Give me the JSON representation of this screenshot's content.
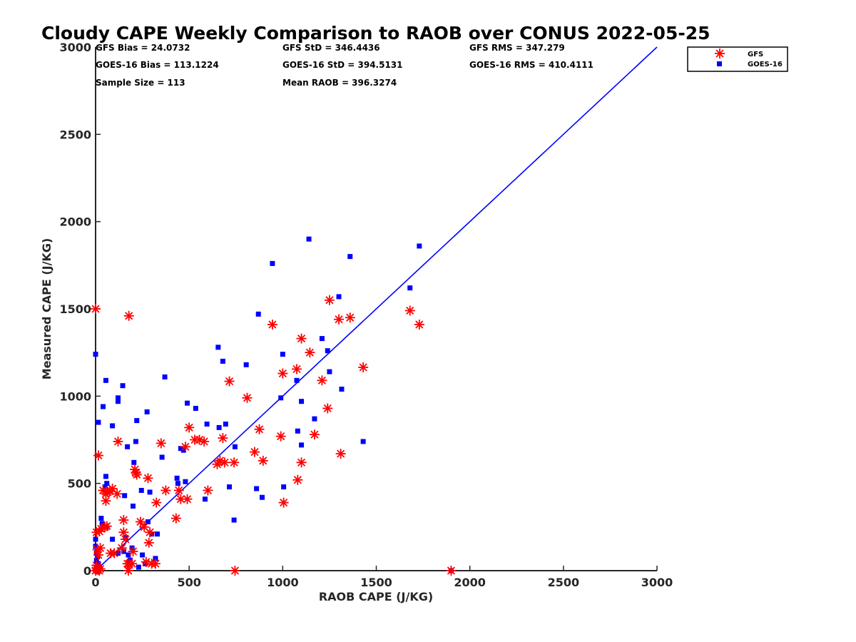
{
  "chart_data": {
    "type": "scatter",
    "title": "Cloudy CAPE Weekly Comparison to RAOB over CONUS 2022-05-25",
    "xlabel": "RAOB CAPE (J/KG)",
    "ylabel": "Measured CAPE (J/KG)",
    "xlim": [
      0,
      3000
    ],
    "ylim": [
      0,
      3000
    ],
    "xticks": [
      "0",
      "500",
      "1000",
      "1500",
      "2000",
      "2500",
      "3000"
    ],
    "yticks": [
      "0",
      "500",
      "1000",
      "1500",
      "2000",
      "2500",
      "3000"
    ],
    "legend_position": "top-right",
    "stats": {
      "gfs_bias": "GFS Bias = 24.0732",
      "goes_bias": "GOES-16 Bias = 113.1224",
      "sample_size": "Sample Size = 113",
      "gfs_std": "GFS StD = 346.4436",
      "goes_std": "GOES-16 StD = 394.5131",
      "mean_raob": "Mean RAOB = 396.3274",
      "gfs_rms": "GFS RMS = 347.279",
      "goes_rms": "GOES-16 RMS = 410.4111"
    },
    "fit_line": {
      "x": [
        0,
        3000
      ],
      "y": [
        0,
        3000
      ],
      "color": "#0000ff"
    },
    "series": [
      {
        "name": "GFS",
        "marker": "asterisk",
        "color": "#ff0000",
        "points": [
          [
            0,
            1500
          ],
          [
            178,
            1460
          ],
          [
            15,
            660
          ],
          [
            0,
            0
          ],
          [
            5,
            15
          ],
          [
            10,
            5
          ],
          [
            20,
            0
          ],
          [
            25,
            10
          ],
          [
            5,
            30
          ],
          [
            15,
            90
          ],
          [
            10,
            120
          ],
          [
            25,
            130
          ],
          [
            5,
            220
          ],
          [
            20,
            225
          ],
          [
            30,
            240
          ],
          [
            50,
            250
          ],
          [
            60,
            255
          ],
          [
            55,
            400
          ],
          [
            40,
            460
          ],
          [
            55,
            440
          ],
          [
            65,
            450
          ],
          [
            75,
            455
          ],
          [
            90,
            470
          ],
          [
            115,
            440
          ],
          [
            120,
            740
          ],
          [
            80,
            100
          ],
          [
            100,
            100
          ],
          [
            140,
            130
          ],
          [
            150,
            290
          ],
          [
            150,
            220
          ],
          [
            160,
            180
          ],
          [
            170,
            40
          ],
          [
            180,
            40
          ],
          [
            175,
            0
          ],
          [
            195,
            40
          ],
          [
            200,
            110
          ],
          [
            215,
            560
          ],
          [
            210,
            580
          ],
          [
            220,
            550
          ],
          [
            240,
            280
          ],
          [
            260,
            250
          ],
          [
            270,
            50
          ],
          [
            290,
            220
          ],
          [
            285,
            160
          ],
          [
            280,
            530
          ],
          [
            300,
            40
          ],
          [
            320,
            40
          ],
          [
            325,
            390
          ],
          [
            350,
            730
          ],
          [
            375,
            460
          ],
          [
            430,
            300
          ],
          [
            445,
            460
          ],
          [
            455,
            410
          ],
          [
            480,
            710
          ],
          [
            490,
            410
          ],
          [
            500,
            820
          ],
          [
            530,
            750
          ],
          [
            555,
            750
          ],
          [
            580,
            740
          ],
          [
            600,
            460
          ],
          [
            650,
            610
          ],
          [
            665,
            630
          ],
          [
            690,
            620
          ],
          [
            680,
            760
          ],
          [
            715,
            1085
          ],
          [
            740,
            620
          ],
          [
            745,
            0
          ],
          [
            810,
            990
          ],
          [
            850,
            680
          ],
          [
            875,
            810
          ],
          [
            895,
            630
          ],
          [
            945,
            1410
          ],
          [
            990,
            770
          ],
          [
            1000,
            1130
          ],
          [
            1005,
            390
          ],
          [
            1075,
            1155
          ],
          [
            1080,
            520
          ],
          [
            1100,
            620
          ],
          [
            1100,
            1330
          ],
          [
            1145,
            1250
          ],
          [
            1170,
            780
          ],
          [
            1210,
            1090
          ],
          [
            1240,
            930
          ],
          [
            1250,
            1550
          ],
          [
            1300,
            1440
          ],
          [
            1310,
            670
          ],
          [
            1360,
            1450
          ],
          [
            1430,
            1165
          ],
          [
            1680,
            1490
          ],
          [
            1730,
            1410
          ],
          [
            1900,
            0
          ]
        ]
      },
      {
        "name": "GOES-16",
        "marker": "square",
        "color": "#0000ff",
        "points": [
          [
            0,
            1240
          ],
          [
            15,
            850
          ],
          [
            40,
            940
          ],
          [
            55,
            1090
          ],
          [
            120,
            970
          ],
          [
            120,
            990
          ],
          [
            145,
            1060
          ],
          [
            90,
            830
          ],
          [
            170,
            710
          ],
          [
            205,
            620
          ],
          [
            215,
            740
          ],
          [
            220,
            860
          ],
          [
            275,
            910
          ],
          [
            370,
            1110
          ],
          [
            55,
            540
          ],
          [
            60,
            500
          ],
          [
            50,
            480
          ],
          [
            30,
            300
          ],
          [
            35,
            270
          ],
          [
            55,
            250
          ],
          [
            0,
            180
          ],
          [
            0,
            140
          ],
          [
            5,
            100
          ],
          [
            10,
            80
          ],
          [
            5,
            60
          ],
          [
            15,
            40
          ],
          [
            20,
            20
          ],
          [
            0,
            0
          ],
          [
            10,
            0
          ],
          [
            25,
            10
          ],
          [
            90,
            180
          ],
          [
            120,
            100
          ],
          [
            150,
            110
          ],
          [
            155,
            430
          ],
          [
            160,
            190
          ],
          [
            175,
            90
          ],
          [
            185,
            60
          ],
          [
            195,
            130
          ],
          [
            200,
            370
          ],
          [
            230,
            20
          ],
          [
            245,
            460
          ],
          [
            250,
            90
          ],
          [
            265,
            40
          ],
          [
            280,
            280
          ],
          [
            290,
            450
          ],
          [
            300,
            210
          ],
          [
            320,
            70
          ],
          [
            330,
            210
          ],
          [
            355,
            650
          ],
          [
            435,
            530
          ],
          [
            440,
            500
          ],
          [
            455,
            700
          ],
          [
            470,
            690
          ],
          [
            480,
            510
          ],
          [
            490,
            960
          ],
          [
            535,
            930
          ],
          [
            585,
            410
          ],
          [
            595,
            840
          ],
          [
            655,
            1280
          ],
          [
            660,
            820
          ],
          [
            680,
            1200
          ],
          [
            695,
            840
          ],
          [
            715,
            480
          ],
          [
            740,
            290
          ],
          [
            745,
            710
          ],
          [
            805,
            1180
          ],
          [
            870,
            1470
          ],
          [
            860,
            470
          ],
          [
            890,
            420
          ],
          [
            945,
            1760
          ],
          [
            990,
            990
          ],
          [
            1000,
            1240
          ],
          [
            1005,
            480
          ],
          [
            1080,
            800
          ],
          [
            1100,
            720
          ],
          [
            1075,
            1090
          ],
          [
            1100,
            970
          ],
          [
            1140,
            1900
          ],
          [
            1170,
            870
          ],
          [
            1210,
            1330
          ],
          [
            1240,
            1260
          ],
          [
            1250,
            1140
          ],
          [
            1300,
            1570
          ],
          [
            1315,
            1040
          ],
          [
            1360,
            1800
          ],
          [
            1430,
            740
          ],
          [
            1680,
            1620
          ],
          [
            1730,
            1860
          ],
          [
            1900,
            0
          ]
        ]
      }
    ]
  }
}
